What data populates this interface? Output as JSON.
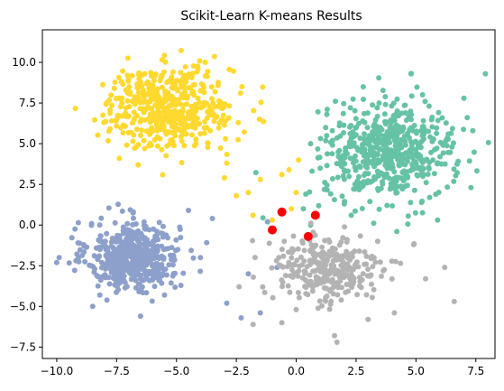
{
  "chart_data": {
    "type": "scatter",
    "title": "Scikit-Learn K-means Results",
    "xlabel": "",
    "ylabel": "",
    "xlim": [
      -10.6,
      8.3
    ],
    "ylim": [
      -8.2,
      12.0
    ],
    "xticks": [
      -10.0,
      -7.5,
      -5.0,
      -2.5,
      0.0,
      2.5,
      5.0,
      7.5
    ],
    "xtick_labels": [
      "−10.0",
      "−7.5",
      "−5.0",
      "−2.5",
      "0.0",
      "2.5",
      "5.0",
      "7.5"
    ],
    "yticks": [
      -7.5,
      -5.0,
      -2.5,
      0.0,
      2.5,
      5.0,
      7.5,
      10.0
    ],
    "ytick_labels": [
      "−7.5",
      "−5.0",
      "−2.5",
      "0.0",
      "2.5",
      "5.0",
      "7.5",
      "10.0"
    ],
    "grid": false,
    "legend": "none",
    "clusters": [
      {
        "color": "#8da0cb",
        "center": [
          -6.8,
          -1.9
        ],
        "spread": [
          0.95,
          1.05
        ],
        "n": 520,
        "extra": [
          [
            -9.9,
            -2.0
          ],
          [
            -10.0,
            -2.3
          ],
          [
            -8.5,
            -5.0
          ],
          [
            -6.5,
            -5.6
          ],
          [
            -4.0,
            -2.0
          ],
          [
            -3.5,
            0.4
          ],
          [
            -2.9,
            -4.8
          ],
          [
            -2.3,
            -5.7
          ],
          [
            -1.5,
            -5.4
          ],
          [
            -2.0,
            -3.0
          ],
          [
            -1.2,
            0.2
          ],
          [
            -0.8,
            -2.6
          ],
          [
            -4.5,
            0.9
          ],
          [
            -5.5,
            -4.3
          ]
        ]
      },
      {
        "color": "#ffd92f",
        "center": [
          -5.3,
          7.2
        ],
        "spread": [
          1.35,
          1.25
        ],
        "n": 480,
        "extra": [
          [
            -7.6,
            8.4
          ],
          [
            -3.8,
            10.0
          ],
          [
            -2.9,
            3.8
          ],
          [
            -2.5,
            1.8
          ],
          [
            -1.5,
            2.8
          ],
          [
            -1.0,
            0.3
          ],
          [
            -0.2,
            1.0
          ],
          [
            0.0,
            2.0
          ],
          [
            -0.3,
            3.4
          ],
          [
            0.1,
            4.0
          ],
          [
            -2.0,
            2.0
          ],
          [
            -3.0,
            2.9
          ],
          [
            -1.8,
            0.6
          ],
          [
            -0.6,
            3.1
          ]
        ]
      },
      {
        "color": "#66c2a5",
        "center": [
          3.9,
          4.5
        ],
        "spread": [
          1.35,
          1.45
        ],
        "n": 560,
        "extra": [
          [
            0.6,
            0.0
          ],
          [
            0.3,
            1.0
          ],
          [
            1.0,
            3.5
          ],
          [
            0.6,
            5.0
          ],
          [
            1.8,
            6.1
          ],
          [
            2.8,
            8.5
          ],
          [
            4.8,
            9.3
          ],
          [
            7.9,
            9.3
          ],
          [
            7.0,
            7.8
          ],
          [
            7.3,
            2.3
          ],
          [
            5.9,
            0.3
          ],
          [
            4.2,
            -0.4
          ],
          [
            2.3,
            0.6
          ],
          [
            0.4,
            1.9
          ]
        ]
      },
      {
        "color": "#b3b3b3",
        "center": [
          1.3,
          -2.7
        ],
        "spread": [
          1.15,
          1.1
        ],
        "n": 290,
        "extra": [
          [
            -1.8,
            -6.1
          ],
          [
            -0.6,
            -6.0
          ],
          [
            0.0,
            -5.2
          ],
          [
            1.6,
            -6.8
          ],
          [
            1.7,
            -7.2
          ],
          [
            3.0,
            -5.8
          ],
          [
            4.1,
            -5.4
          ],
          [
            5.4,
            -3.3
          ],
          [
            6.6,
            -4.7
          ],
          [
            6.2,
            -2.6
          ],
          [
            4.9,
            -1.2
          ],
          [
            3.4,
            -1.0
          ],
          [
            -0.5,
            -1.0
          ],
          [
            -1.4,
            -3.8
          ]
        ]
      }
    ],
    "centroids": {
      "color": "#ff0000",
      "points": [
        [
          -0.6,
          0.8
        ],
        [
          0.8,
          0.6
        ],
        [
          -1.0,
          -0.3
        ],
        [
          0.5,
          -0.7
        ]
      ]
    }
  }
}
